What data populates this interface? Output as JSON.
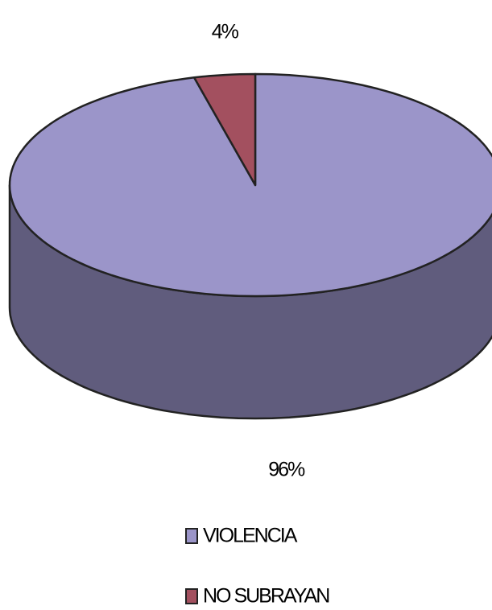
{
  "chart_data": {
    "type": "pie",
    "categories": [
      "VIOLENCIA",
      "NO SUBRAYAN"
    ],
    "values": [
      96,
      4
    ],
    "value_labels": [
      "96%",
      "4%"
    ],
    "colors": [
      "#9b95c9",
      "#a3505f"
    ],
    "three_d": true,
    "legend": "bottom"
  }
}
